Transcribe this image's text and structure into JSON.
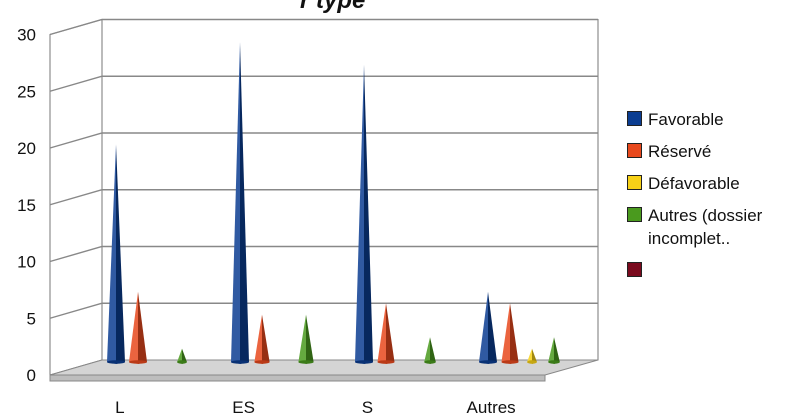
{
  "chart_data": {
    "type": "bar",
    "title": "",
    "categories": [
      "L",
      "ES",
      "S",
      "Autres"
    ],
    "ylim": [
      0,
      30
    ],
    "yticks": [
      "0",
      "5",
      "10",
      "15",
      "20",
      "25",
      "30"
    ],
    "grid": true,
    "legend_position": "right",
    "series": [
      {
        "name": "Favorable",
        "color": "#0b3d91",
        "values": [
          19,
          28,
          26,
          6
        ]
      },
      {
        "name": "Réservé",
        "color": "#e8491d",
        "values": [
          6,
          4,
          5,
          5
        ]
      },
      {
        "name": "Défavorable",
        "color": "#f7d117",
        "values": [
          0,
          0,
          0,
          1
        ]
      },
      {
        "name": "Autres (dossier incomplet..",
        "color": "#4a9a1e",
        "values": [
          1,
          4,
          2,
          2
        ]
      },
      {
        "name": "",
        "color": "#7a0a1e",
        "values": [
          0,
          0,
          0,
          0
        ]
      }
    ]
  },
  "title_fragment": "r type"
}
